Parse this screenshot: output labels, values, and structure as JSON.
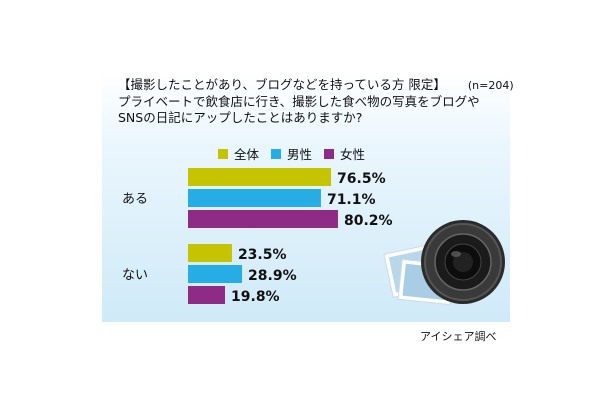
{
  "header": {
    "line1": "【撮影したことがあり、ブログなどを持っている方 限定】",
    "sample": "(n=204)",
    "line2": "プライベートで飲食店に行き、撮影した食べ物の写真をブログや",
    "line3": "SNSの日記にアップしたことはありますか?"
  },
  "source": "アイシェア調べ",
  "colors": {
    "all": "#c4c400",
    "male": "#27ade6",
    "female": "#8e2b86"
  },
  "chart_data": {
    "type": "bar",
    "orientation": "horizontal",
    "categories": [
      "ある",
      "ない"
    ],
    "series": [
      {
        "name": "全体",
        "values": [
          76.5,
          23.5
        ],
        "labels": [
          "76.5%",
          "23.5%"
        ]
      },
      {
        "name": "男性",
        "values": [
          71.1,
          28.9
        ],
        "labels": [
          "71.1%",
          "28.9%"
        ]
      },
      {
        "name": "女性",
        "values": [
          80.2,
          19.8
        ],
        "labels": [
          "80.2%",
          "19.8%"
        ]
      }
    ],
    "unit": "%",
    "xlim": [
      0,
      100
    ],
    "legend": "top",
    "grid": false
  }
}
